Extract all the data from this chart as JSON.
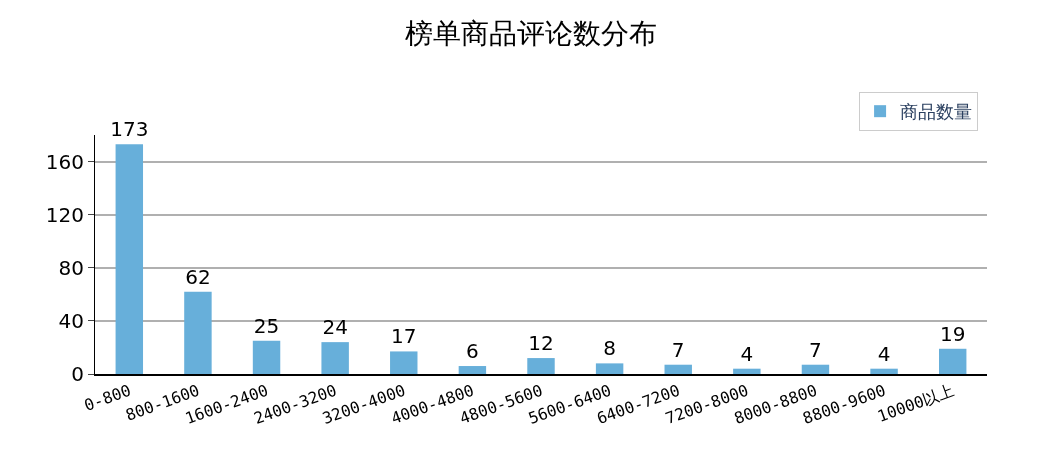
{
  "chart_data": {
    "type": "bar",
    "title": "榜单商品评论数分布",
    "categories": [
      "0-800",
      "800-1600",
      "1600-2400",
      "2400-3200",
      "3200-4000",
      "4000-4800",
      "4800-5600",
      "5600-6400",
      "6400-7200",
      "7200-8000",
      "8000-8800",
      "8800-9600",
      "10000以上"
    ],
    "series": [
      {
        "name": "商品数量",
        "color": "#67afda",
        "values": [
          173,
          62,
          25,
          24,
          17,
          6,
          12,
          8,
          7,
          4,
          7,
          4,
          19
        ]
      }
    ],
    "ylim": [
      0,
      180
    ],
    "yticks": [
      0,
      40,
      80,
      120,
      160
    ],
    "grid": "y",
    "legend": "top right",
    "data_labels": true
  }
}
